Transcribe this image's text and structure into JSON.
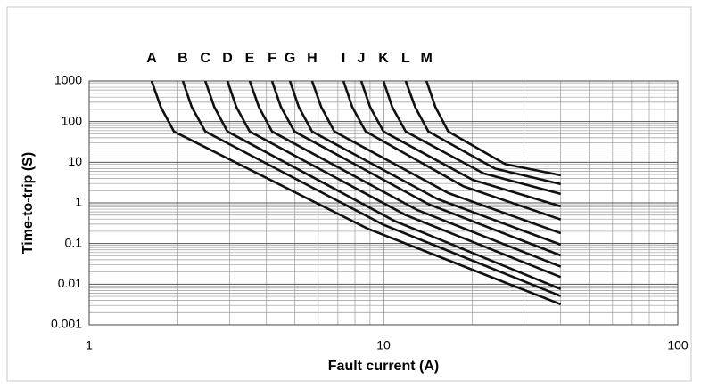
{
  "chart_data": {
    "type": "line",
    "xlabel": "Fault current (A)",
    "ylabel": "Time-to-trip (S)",
    "xscale": "log",
    "yscale": "log",
    "grid": true,
    "color": "#111111",
    "xlim": [
      1,
      100
    ],
    "xticks": [
      1,
      10,
      100
    ],
    "ylim": [
      0.001,
      1000
    ],
    "yticks": [
      0.001,
      0.01,
      0.1,
      1,
      10,
      100,
      1000
    ],
    "series": [
      {
        "name": "A",
        "x": [
          1.63,
          1.75,
          1.94,
          8.85,
          40
        ],
        "values": [
          1000,
          230,
          57,
          0.23,
          0.0032
        ]
      },
      {
        "name": "B",
        "x": [
          2.08,
          2.23,
          2.48,
          10,
          40
        ],
        "values": [
          1000,
          230,
          57,
          0.29,
          0.0051
        ]
      },
      {
        "name": "C",
        "x": [
          2.48,
          2.66,
          2.95,
          10.9,
          40
        ],
        "values": [
          1000,
          230,
          57,
          0.36,
          0.0076
        ]
      },
      {
        "name": "D",
        "x": [
          2.95,
          3.16,
          3.51,
          11.9,
          40
        ],
        "values": [
          1000,
          230,
          57,
          0.5,
          0.015
        ]
      },
      {
        "name": "E",
        "x": [
          3.51,
          3.77,
          4.18,
          13.0,
          40
        ],
        "values": [
          1000,
          230,
          57,
          0.67,
          0.027
        ]
      },
      {
        "name": "F",
        "x": [
          4.18,
          4.48,
          4.98,
          14.2,
          40
        ],
        "values": [
          1000,
          230,
          57,
          0.93,
          0.051
        ]
      },
      {
        "name": "G",
        "x": [
          4.81,
          5.15,
          5.72,
          15.2,
          40
        ],
        "values": [
          1000,
          230,
          57,
          1.26,
          0.094
        ]
      },
      {
        "name": "H",
        "x": [
          5.72,
          6.14,
          6.81,
          16.6,
          40
        ],
        "values": [
          1000,
          230,
          57,
          1.75,
          0.18
        ]
      },
      {
        "name": "I",
        "x": [
          7.31,
          7.83,
          8.7,
          18.7,
          40
        ],
        "values": [
          1000,
          230,
          57,
          2.55,
          0.39
        ]
      },
      {
        "name": "J",
        "x": [
          8.4,
          9.0,
          10,
          20.1,
          40
        ],
        "values": [
          1000,
          230,
          57,
          3.7,
          0.82
        ]
      },
      {
        "name": "K",
        "x": [
          10,
          10.7,
          11.9,
          21.9,
          40
        ],
        "values": [
          1000,
          230,
          57,
          5.3,
          1.66
        ]
      },
      {
        "name": "L",
        "x": [
          11.9,
          12.8,
          14.2,
          23.9,
          40
        ],
        "values": [
          1000,
          230,
          57,
          7.0,
          2.9
        ]
      },
      {
        "name": "M",
        "x": [
          14.0,
          15.0,
          16.6,
          25.9,
          40
        ],
        "values": [
          1000,
          230,
          57,
          9.0,
          4.8
        ]
      }
    ]
  }
}
